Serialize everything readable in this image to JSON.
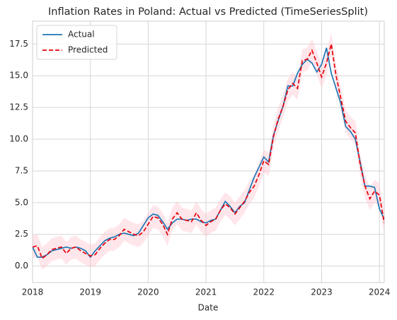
{
  "chart_data": {
    "type": "line",
    "title": "Inflation Rates in Poland: Actual vs Predicted (TimeSeriesSplit)",
    "x_label": "Date",
    "x": [
      "2018-01",
      "2018-02",
      "2018-03",
      "2018-04",
      "2018-05",
      "2018-06",
      "2018-07",
      "2018-08",
      "2018-09",
      "2018-10",
      "2018-11",
      "2018-12",
      "2019-01",
      "2019-02",
      "2019-03",
      "2019-04",
      "2019-05",
      "2019-06",
      "2019-07",
      "2019-08",
      "2019-09",
      "2019-10",
      "2019-11",
      "2019-12",
      "2020-01",
      "2020-02",
      "2020-03",
      "2020-04",
      "2020-05",
      "2020-06",
      "2020-07",
      "2020-08",
      "2020-09",
      "2020-10",
      "2020-11",
      "2020-12",
      "2021-01",
      "2021-02",
      "2021-03",
      "2021-04",
      "2021-05",
      "2021-06",
      "2021-07",
      "2021-08",
      "2021-09",
      "2021-10",
      "2021-11",
      "2021-12",
      "2022-01",
      "2022-02",
      "2022-03",
      "2022-04",
      "2022-05",
      "2022-06",
      "2022-07",
      "2022-08",
      "2022-09",
      "2022-10",
      "2022-11",
      "2022-12",
      "2023-01",
      "2023-02",
      "2023-03",
      "2023-04",
      "2023-05",
      "2023-06",
      "2023-07",
      "2023-08",
      "2023-09",
      "2023-10",
      "2023-11",
      "2023-12",
      "2024-01",
      "2024-02"
    ],
    "series": [
      {
        "name": "Actual",
        "color": "#1f77b4",
        "dash": "solid",
        "values": [
          1.5,
          0.7,
          0.7,
          0.9,
          1.2,
          1.3,
          1.4,
          1.5,
          1.4,
          1.5,
          1.4,
          1.2,
          0.7,
          1.2,
          1.6,
          2.0,
          2.2,
          2.3,
          2.5,
          2.6,
          2.5,
          2.4,
          2.6,
          3.2,
          3.8,
          4.1,
          4.0,
          3.5,
          2.9,
          3.4,
          3.7,
          3.7,
          3.6,
          3.7,
          3.7,
          3.5,
          3.4,
          3.6,
          3.7,
          4.4,
          5.1,
          4.7,
          4.2,
          4.7,
          5.0,
          6.0,
          7.0,
          7.8,
          8.6,
          8.2,
          10.3,
          11.5,
          12.6,
          14.2,
          14.2,
          15.2,
          15.9,
          16.3,
          16.0,
          15.3,
          15.9,
          17.2,
          15.2,
          14.0,
          12.8,
          11.0,
          10.6,
          10.0,
          8.2,
          6.3,
          6.3,
          6.2,
          4.5,
          3.7
        ]
      },
      {
        "name": "Predicted",
        "color": "#e8000b",
        "dash": "dashed",
        "values": [
          1.5,
          1.6,
          0.6,
          0.9,
          1.3,
          1.4,
          1.5,
          1.0,
          1.4,
          1.5,
          1.2,
          1.0,
          0.8,
          0.9,
          1.4,
          1.8,
          2.1,
          2.1,
          2.4,
          2.9,
          2.7,
          2.5,
          2.4,
          2.7,
          3.3,
          3.9,
          3.8,
          3.3,
          2.5,
          3.7,
          4.2,
          3.7,
          3.6,
          3.5,
          4.2,
          3.6,
          3.2,
          3.5,
          3.7,
          4.4,
          4.9,
          4.6,
          4.1,
          4.6,
          5.1,
          5.8,
          6.3,
          7.2,
          8.3,
          8.0,
          10.2,
          11.6,
          12.6,
          13.9,
          14.4,
          14.0,
          16.2,
          16.3,
          17.0,
          16.0,
          14.9,
          16.0,
          17.5,
          15.0,
          13.2,
          11.4,
          10.9,
          10.5,
          8.0,
          6.3,
          5.3,
          5.9,
          5.6,
          3.4
        ]
      }
    ],
    "band": {
      "color": "#ffc0cb",
      "halfwidth": 0.9
    },
    "xlim": [
      "2018-01",
      "2024-02"
    ],
    "xticks": [
      "2018",
      "2019",
      "2020",
      "2021",
      "2022",
      "2023",
      "2024"
    ],
    "ylim": [
      -1.3,
      19.3
    ],
    "yticks": [
      {
        "value": 0,
        "label": "0.0"
      },
      2.5,
      {
        "value": 5,
        "label": "5.0"
      },
      7.5,
      {
        "value": 10,
        "label": "10.0"
      },
      12.5,
      {
        "value": 15,
        "label": "15.0"
      },
      17.5
    ],
    "grid": true,
    "legend": "upper left"
  }
}
